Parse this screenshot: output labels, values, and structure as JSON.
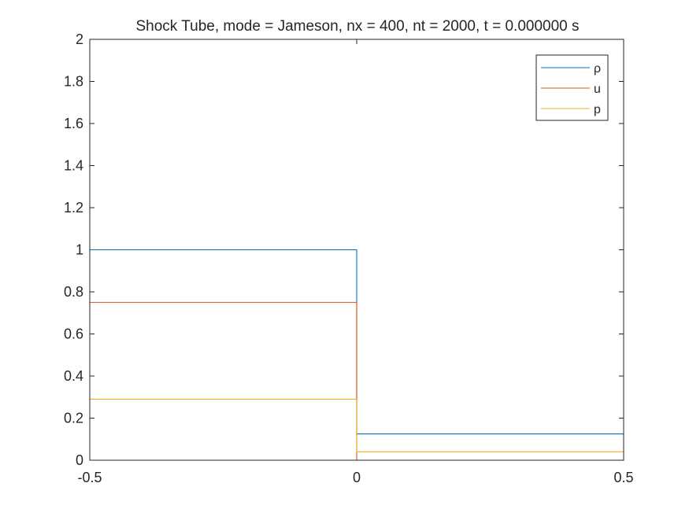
{
  "chart_data": {
    "type": "line",
    "title": "Shock Tube, mode = Jameson, nx = 400, nt = 2000, t = 0.000000 s",
    "xlabel": "",
    "ylabel": "",
    "xlim": [
      -0.5,
      0.5
    ],
    "ylim": [
      0,
      2
    ],
    "xticks": [
      "-0.5",
      "0",
      "0.5"
    ],
    "yticks": [
      "0",
      "0.2",
      "0.4",
      "0.6",
      "0.8",
      "1",
      "1.2",
      "1.4",
      "1.6",
      "1.8",
      "2"
    ],
    "grid": false,
    "legend_position": "top-right",
    "series": [
      {
        "name": "ρ",
        "color": "#0072BD",
        "x": [
          -0.5,
          0,
          0,
          0.5
        ],
        "y": [
          1,
          1,
          0.125,
          0.125
        ]
      },
      {
        "name": "u",
        "color": "#D95319",
        "x": [
          -0.5,
          0,
          0,
          0.5
        ],
        "y": [
          0.75,
          0.75,
          0,
          0
        ]
      },
      {
        "name": "p",
        "color": "#EDB120",
        "x": [
          -0.5,
          0,
          0,
          0.5
        ],
        "y": [
          0.29,
          0.29,
          0.04,
          0.04
        ]
      }
    ]
  }
}
